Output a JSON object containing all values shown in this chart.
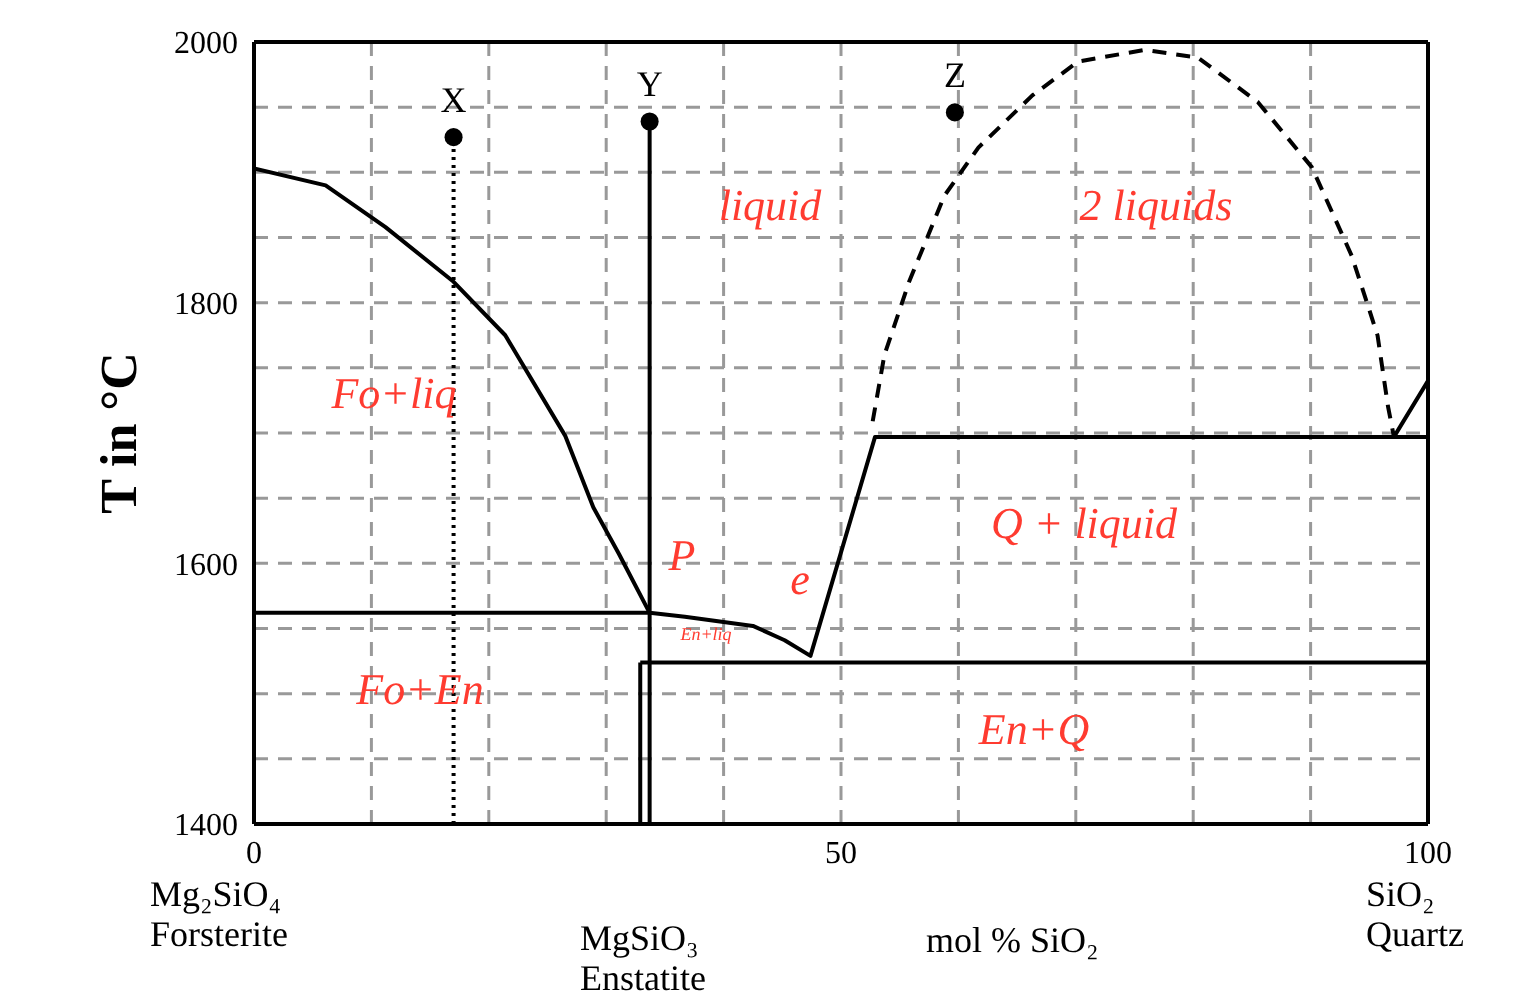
{
  "chart_data": {
    "type": "line",
    "ylabel": "T in °C",
    "xlabel": "mol % SiO₂",
    "xlim": [
      0,
      100
    ],
    "ylim": [
      1400,
      2000
    ],
    "xticks": [
      0,
      {
        "value": 10,
        "label": null
      },
      {
        "value": 20,
        "label": null
      },
      {
        "value": 30,
        "label": null
      },
      {
        "value": 40,
        "label": null
      },
      50,
      {
        "value": 60,
        "label": null
      },
      {
        "value": 70,
        "label": null
      },
      {
        "value": 80,
        "label": null
      },
      {
        "value": 90,
        "label": null
      },
      100
    ],
    "yticks": [
      1400,
      {
        "value": 1450,
        "label": null
      },
      {
        "value": 1500,
        "label": null
      },
      {
        "value": 1550,
        "label": null
      },
      1600,
      {
        "value": 1650,
        "label": null
      },
      {
        "value": 1700,
        "label": null
      },
      {
        "value": 1750,
        "label": null
      },
      1800,
      {
        "value": 1850,
        "label": null
      },
      {
        "value": 1900,
        "label": null
      },
      {
        "value": 1950,
        "label": null
      },
      2000
    ],
    "grid": true,
    "series": [
      {
        "color": "#000000",
        "line_style": "solid",
        "marker": "none",
        "x": [
          0,
          6.1,
          11.2,
          17,
          21.4,
          26.5,
          28.9,
          31.1,
          33.7,
          36.7,
          42.5,
          45.2,
          47.4,
          52.9,
          97.1,
          100
        ],
        "values": [
          1903,
          1890,
          1858,
          1816,
          1775,
          1698,
          1643,
          1607,
          1562,
          1559,
          1552,
          1541,
          1529,
          1697,
          1697,
          1740
        ]
      },
      {
        "color": "#000000",
        "line_style": "solid",
        "marker": "none",
        "x": [
          97.1,
          100
        ],
        "values": [
          1697,
          1697
        ]
      },
      {
        "color": "#000000",
        "line_style": "dashed",
        "marker": "none",
        "x": [
          52.7,
          53.7,
          55.8,
          58.8,
          61.7,
          66.3,
          70.2,
          75.9,
          80.4,
          85.5,
          90.1,
          93.5,
          95.7,
          96.6,
          97.1
        ],
        "values": [
          1709,
          1760,
          1816,
          1882,
          1919,
          1959,
          1985,
          1994,
          1988,
          1954,
          1904,
          1836,
          1775,
          1720,
          1697
        ]
      },
      {
        "color": "#000000",
        "line_style": "solid",
        "marker": "none",
        "x": [
          0,
          33.7
        ],
        "values": [
          1562,
          1562
        ]
      },
      {
        "color": "#000000",
        "line_style": "solid",
        "marker": "none",
        "x": [
          32.9,
          100
        ],
        "values": [
          1524,
          1524
        ]
      },
      {
        "color": "#000000",
        "line_style": "dotted",
        "marker": "none",
        "x": [
          17,
          17
        ],
        "values": [
          1400,
          1927
        ]
      },
      {
        "color": "#000000",
        "line_style": "solid",
        "marker": "none",
        "x": [
          33.7,
          33.7
        ],
        "values": [
          1400,
          1939
        ]
      },
      {
        "color": "#000000",
        "line_style": "solid",
        "marker": "none",
        "x": [
          32.9,
          32.9
        ],
        "values": [
          1400,
          1524
        ]
      },
      {
        "type": "scatter",
        "name": "X",
        "color": "#000000",
        "marker": "circle",
        "x": [
          17
        ],
        "values": [
          1927
        ]
      },
      {
        "type": "scatter",
        "name": "Y",
        "color": "#000000",
        "marker": "circle",
        "x": [
          33.7
        ],
        "values": [
          1939
        ]
      },
      {
        "type": "scatter",
        "name": "Z",
        "color": "#000000",
        "marker": "circle",
        "x": [
          59.7
        ],
        "values": [
          1946
        ]
      }
    ],
    "annotations": [
      "liquid",
      "2 liquids",
      "Fo+liq",
      "Q + liquid",
      "P",
      "e",
      "En+liq",
      "Fo+En",
      "En+Q",
      "Mg₂SiO₄\nForsterite",
      "MgSiO₃\nEnstatite",
      "SiO₂\nQuartz"
    ]
  }
}
